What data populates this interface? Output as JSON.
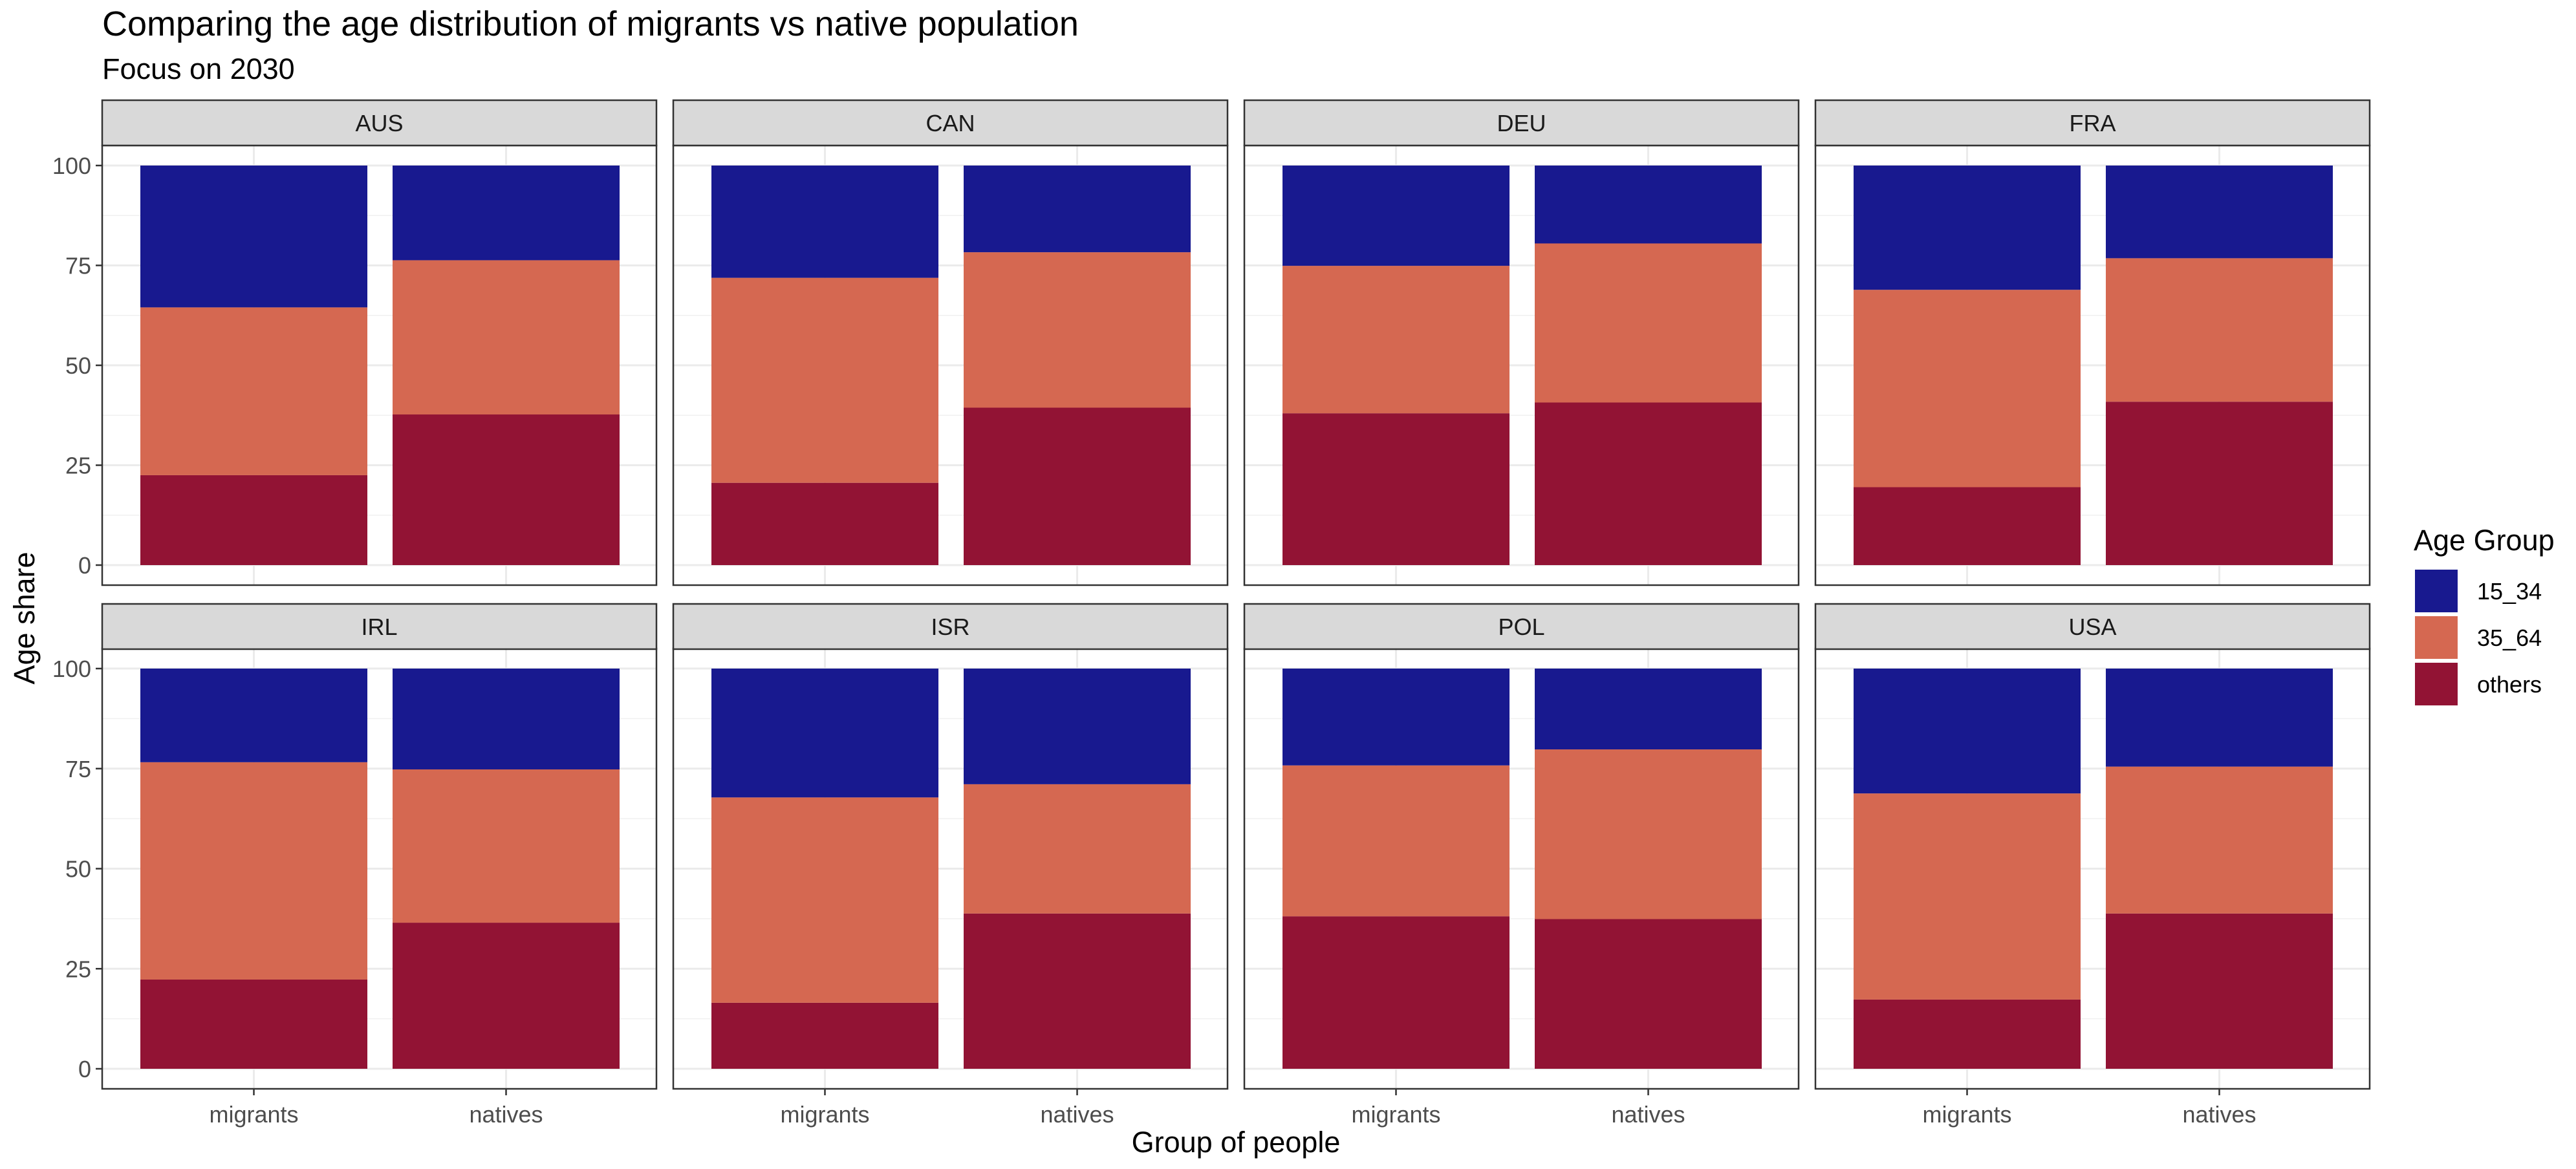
{
  "chart_data": {
    "type": "bar",
    "stacked": true,
    "title": "Comparing the age distribution of migrants vs native population",
    "subtitle": "Focus on 2030",
    "xlabel": "Group of people",
    "ylabel": "Age share",
    "ylim": [
      0,
      100
    ],
    "yticks": [
      "0",
      "25",
      "50",
      "75",
      "100"
    ],
    "categories": [
      "migrants",
      "natives"
    ],
    "grid": true,
    "legend": {
      "title": "Age Group",
      "placement": "right",
      "entries": [
        {
          "key": "15_34",
          "label": "15_34",
          "color": "#18198F"
        },
        {
          "key": "35_64",
          "label": "35_64",
          "color": "#D56851"
        },
        {
          "key": "others",
          "label": "others",
          "color": "#921334"
        }
      ]
    },
    "stack_order_bottom_to_top": [
      "others",
      "35_64",
      "15_34"
    ],
    "panels": [
      {
        "label": "AUS",
        "values": {
          "others": [
            22.5,
            37.7
          ],
          "35_64": [
            42.0,
            38.6
          ],
          "15_34": [
            35.5,
            23.7
          ]
        }
      },
      {
        "label": "CAN",
        "values": {
          "others": [
            20.6,
            39.4
          ],
          "35_64": [
            51.3,
            38.9
          ],
          "15_34": [
            28.1,
            21.7
          ]
        }
      },
      {
        "label": "DEU",
        "values": {
          "others": [
            38.0,
            40.7
          ],
          "35_64": [
            36.9,
            39.8
          ],
          "15_34": [
            25.1,
            19.5
          ]
        }
      },
      {
        "label": "FRA",
        "values": {
          "others": [
            19.5,
            40.9
          ],
          "35_64": [
            49.4,
            35.9
          ],
          "15_34": [
            31.1,
            23.2
          ]
        }
      },
      {
        "label": "IRL",
        "values": {
          "others": [
            22.3,
            36.5
          ],
          "35_64": [
            54.3,
            38.3
          ],
          "15_34": [
            23.4,
            25.2
          ]
        }
      },
      {
        "label": "ISR",
        "values": {
          "others": [
            16.5,
            38.8
          ],
          "35_64": [
            51.3,
            32.3
          ],
          "15_34": [
            32.2,
            28.9
          ]
        }
      },
      {
        "label": "POL",
        "values": {
          "others": [
            38.1,
            37.4
          ],
          "35_64": [
            37.7,
            42.4
          ],
          "15_34": [
            24.2,
            20.2
          ]
        }
      },
      {
        "label": "USA",
        "values": {
          "others": [
            17.3,
            38.8
          ],
          "35_64": [
            51.5,
            36.7
          ],
          "15_34": [
            31.2,
            24.5
          ]
        }
      }
    ]
  }
}
